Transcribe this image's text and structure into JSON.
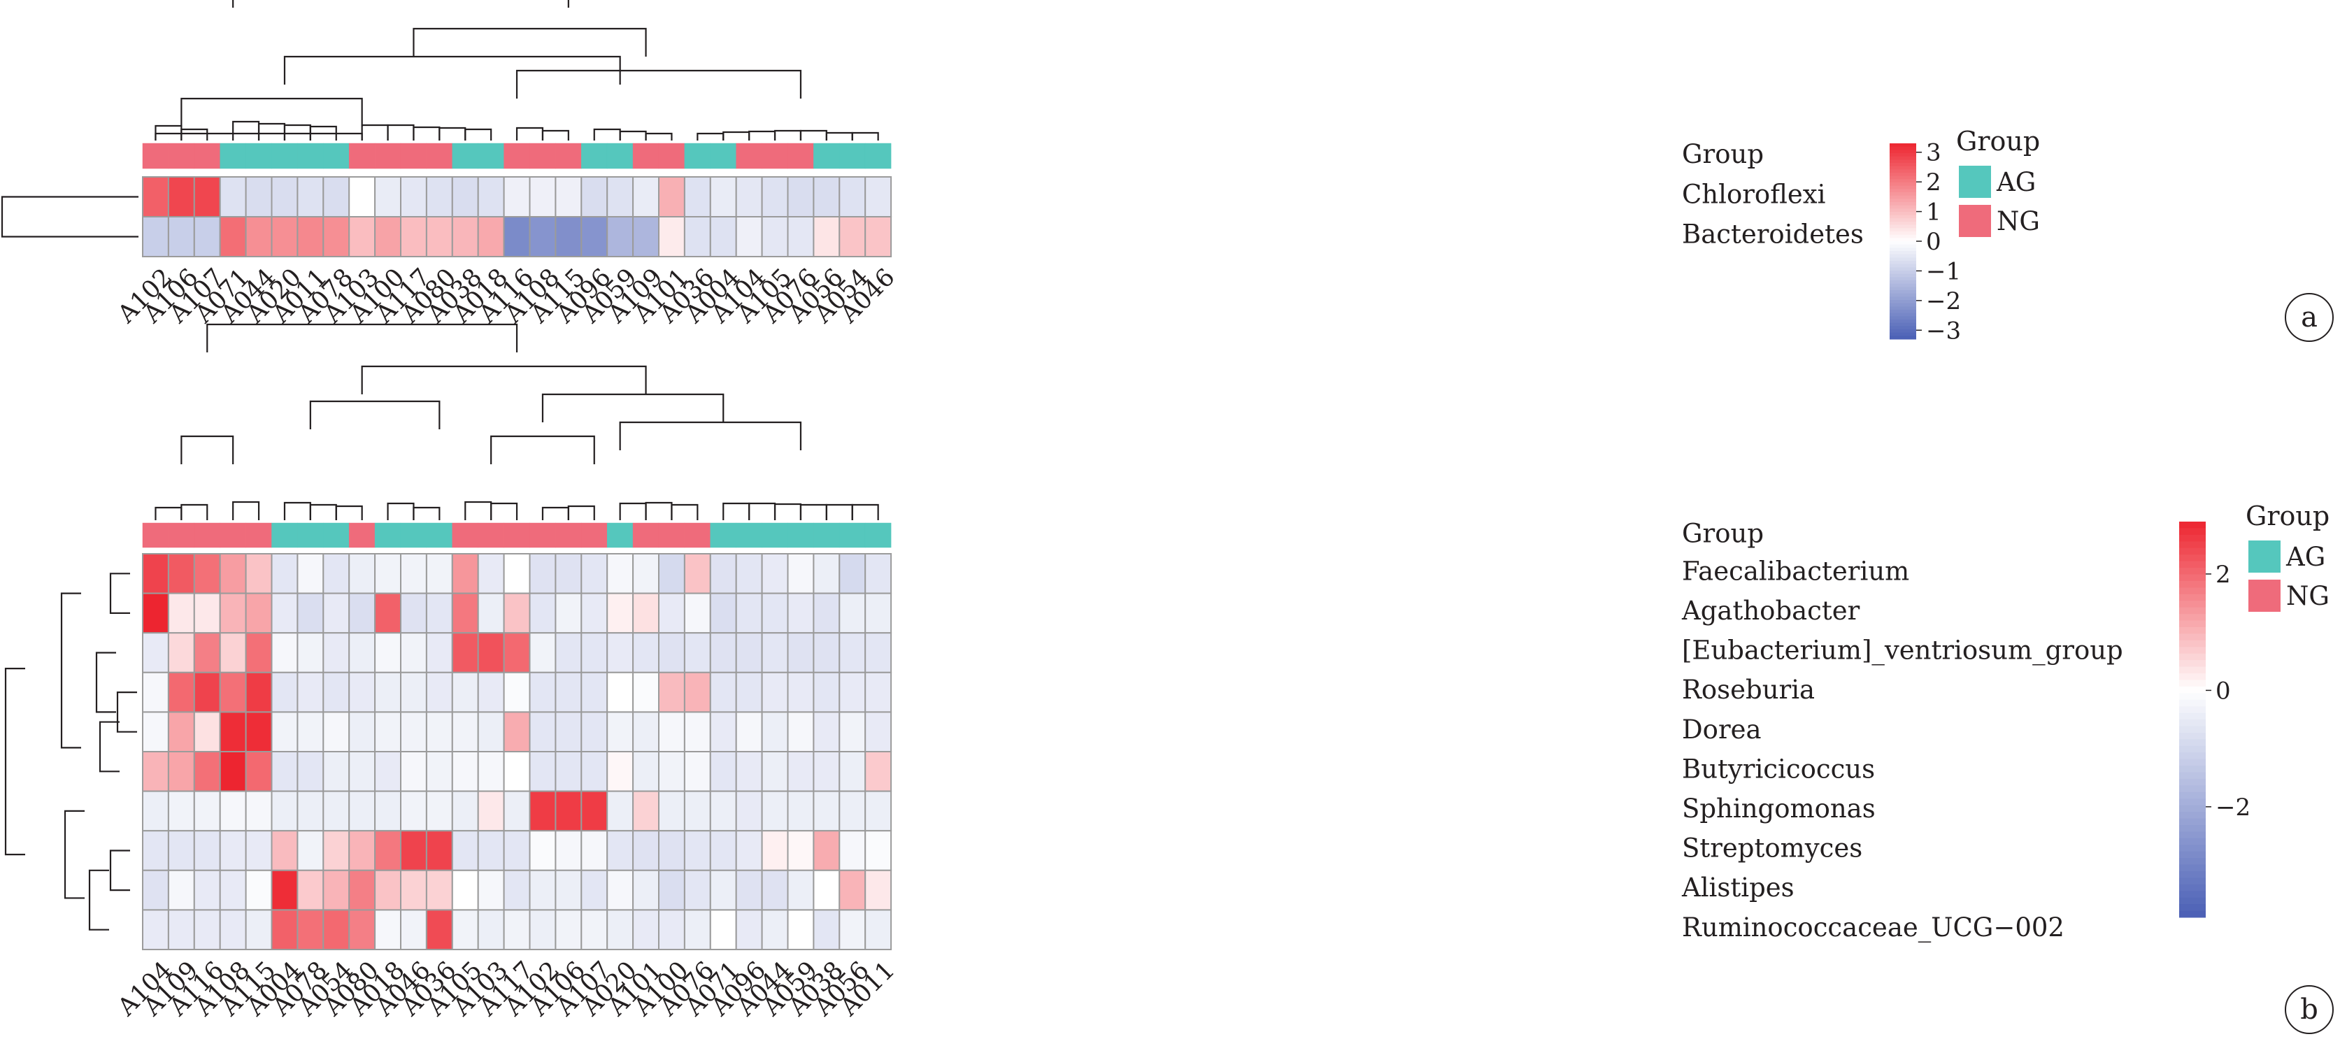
{
  "colors": {
    "AG": "#55c7bd",
    "NG": "#ef6b7b",
    "high": "#ed2530",
    "mid": "#ffffff",
    "low": "#4a5fb5",
    "cell_border": "#9b9b9b",
    "dendrogram": "#231f20"
  },
  "chart_data": [
    {
      "type": "heatmap",
      "panel_label": "a",
      "columns": [
        "A102",
        "A106",
        "A107",
        "A071",
        "A044",
        "A020",
        "A011",
        "A078",
        "A103",
        "A100",
        "A117",
        "A080",
        "A038",
        "A018",
        "A116",
        "A108",
        "A115",
        "A096",
        "A059",
        "A109",
        "A101",
        "A036",
        "A004",
        "A104",
        "A105",
        "A076",
        "A056",
        "A054",
        "A046"
      ],
      "groups": [
        "NG",
        "NG",
        "NG",
        "AG",
        "AG",
        "AG",
        "AG",
        "AG",
        "NG",
        "NG",
        "NG",
        "NG",
        "AG",
        "AG",
        "NG",
        "NG",
        "NG",
        "AG",
        "AG",
        "NG",
        "NG",
        "AG",
        "AG",
        "NG",
        "NG",
        "NG",
        "AG",
        "AG",
        "AG"
      ],
      "group_row_label": "Group",
      "rows": [
        "Chloroflexi",
        "Bacteroidetes"
      ],
      "values": [
        [
          2.4,
          2.8,
          2.8,
          -0.6,
          -0.7,
          -0.7,
          -0.6,
          -0.7,
          0.0,
          -0.4,
          -0.5,
          -0.6,
          -0.7,
          -0.6,
          -0.3,
          -0.3,
          -0.3,
          -0.7,
          -0.6,
          -0.4,
          1.2,
          -0.6,
          -0.4,
          -0.5,
          -0.6,
          -0.7,
          -0.7,
          -0.6,
          -0.5
        ],
        [
          -1.0,
          -1.0,
          -1.0,
          2.2,
          1.7,
          1.7,
          1.8,
          1.7,
          1.0,
          1.4,
          1.0,
          1.0,
          1.1,
          1.3,
          -2.4,
          -2.2,
          -2.3,
          -2.2,
          -1.5,
          -1.5,
          0.3,
          -0.6,
          -0.6,
          -0.3,
          -0.5,
          -0.5,
          0.4,
          0.9,
          0.9
        ]
      ],
      "legend": {
        "title": "Group",
        "entries": [
          {
            "label": "AG",
            "group": "AG"
          },
          {
            "label": "NG",
            "group": "NG"
          }
        ],
        "colorbar_ticks": [
          "3",
          "2",
          "1",
          "0",
          "−1",
          "−2",
          "−3"
        ],
        "colorbar_range": [
          -3.3,
          3.3
        ]
      }
    },
    {
      "type": "heatmap",
      "panel_label": "b",
      "columns": [
        "A104",
        "A109",
        "A116",
        "A108",
        "A115",
        "A004",
        "A078",
        "A054",
        "A080",
        "A018",
        "A046",
        "A036",
        "A105",
        "A103",
        "A117",
        "A102",
        "A106",
        "A107",
        "A020",
        "A101",
        "A100",
        "A076",
        "A071",
        "A096",
        "A044",
        "A059",
        "A038",
        "A056",
        "A011"
      ],
      "groups": [
        "NG",
        "NG",
        "NG",
        "NG",
        "NG",
        "AG",
        "AG",
        "AG",
        "NG",
        "AG",
        "AG",
        "AG",
        "NG",
        "NG",
        "NG",
        "NG",
        "NG",
        "NG",
        "AG",
        "NG",
        "NG",
        "NG",
        "AG",
        "AG",
        "AG",
        "AG",
        "AG",
        "AG",
        "AG"
      ],
      "group_row_label": "Group",
      "rows": [
        "Faecalibacterium",
        "Agathobacter",
        "[Eubacterium]_ventriosum_group",
        "Roseburia",
        "Dorea",
        "Butyricicoccus",
        "Sphingomonas",
        "Streptomyces",
        "Alistipes",
        "Ruminococcaceae_UCG−002"
      ],
      "values": [
        [
          2.5,
          2.2,
          1.9,
          1.3,
          0.8,
          -0.6,
          -0.2,
          -0.6,
          -0.4,
          -0.3,
          -0.3,
          -0.3,
          1.4,
          -0.5,
          0.0,
          -0.7,
          -0.7,
          -0.6,
          -0.2,
          -0.3,
          -0.9,
          0.8,
          -0.7,
          -0.6,
          -0.5,
          -0.2,
          -0.4,
          -0.9,
          -0.6
        ],
        [
          2.9,
          0.3,
          0.3,
          1.0,
          1.2,
          -0.5,
          -0.8,
          -0.5,
          -0.8,
          2.1,
          -0.7,
          -0.6,
          1.8,
          -0.4,
          0.8,
          -0.6,
          -0.3,
          -0.5,
          0.2,
          0.4,
          -0.5,
          -0.2,
          -0.8,
          -0.6,
          -0.6,
          -0.5,
          -0.7,
          -0.4,
          -0.4
        ],
        [
          -0.5,
          0.5,
          1.7,
          0.6,
          1.9,
          -0.2,
          -0.3,
          -0.5,
          -0.4,
          -0.2,
          -0.3,
          -0.5,
          2.2,
          2.3,
          2.0,
          -0.3,
          -0.6,
          -0.6,
          -0.5,
          -0.6,
          -0.7,
          -0.6,
          -0.7,
          -0.7,
          -0.6,
          -0.7,
          -0.7,
          -0.6,
          -0.6
        ],
        [
          -0.2,
          2.0,
          2.5,
          1.9,
          2.6,
          -0.6,
          -0.5,
          -0.6,
          -0.5,
          -0.4,
          -0.4,
          -0.5,
          -0.4,
          -0.5,
          -0.1,
          -0.6,
          -0.6,
          -0.6,
          0.0,
          -0.1,
          0.9,
          1.0,
          -0.6,
          -0.6,
          -0.5,
          -0.5,
          -0.6,
          -0.5,
          -0.5
        ],
        [
          -0.2,
          1.2,
          0.4,
          2.8,
          2.8,
          -0.3,
          -0.3,
          -0.2,
          -0.4,
          -0.3,
          -0.3,
          -0.3,
          -0.3,
          -0.4,
          1.1,
          -0.6,
          -0.6,
          -0.6,
          -0.3,
          -0.4,
          -0.2,
          -0.2,
          -0.5,
          -0.2,
          -0.4,
          -0.2,
          -0.5,
          -0.3,
          -0.5
        ],
        [
          1.0,
          1.2,
          1.9,
          2.9,
          2.0,
          -0.6,
          -0.6,
          -0.4,
          -0.4,
          -0.5,
          -0.2,
          -0.3,
          -0.2,
          -0.2,
          0.0,
          -0.6,
          -0.6,
          -0.6,
          0.1,
          -0.4,
          -0.3,
          -0.2,
          -0.6,
          -0.5,
          -0.4,
          -0.5,
          -0.5,
          -0.4,
          0.7
        ],
        [
          -0.4,
          -0.3,
          -0.3,
          -0.2,
          -0.2,
          -0.4,
          -0.4,
          -0.4,
          -0.4,
          -0.4,
          -0.3,
          -0.3,
          -0.4,
          0.3,
          -0.4,
          2.6,
          2.6,
          2.6,
          -0.4,
          0.6,
          -0.4,
          -0.4,
          -0.4,
          -0.5,
          -0.4,
          -0.4,
          -0.4,
          -0.4,
          -0.4
        ],
        [
          -0.6,
          -0.6,
          -0.6,
          -0.5,
          -0.5,
          0.9,
          -0.3,
          0.6,
          1.0,
          1.8,
          2.5,
          2.5,
          -0.6,
          -0.6,
          -0.6,
          -0.1,
          -0.2,
          -0.2,
          -0.6,
          -0.7,
          -0.7,
          -0.6,
          -0.6,
          -0.5,
          0.2,
          0.1,
          1.1,
          -0.2,
          -0.1
        ],
        [
          -0.7,
          -0.2,
          -0.5,
          -0.5,
          -0.1,
          2.8,
          0.7,
          1.0,
          1.7,
          0.8,
          0.6,
          0.6,
          0.0,
          -0.2,
          -0.6,
          -0.4,
          -0.4,
          -0.6,
          -0.2,
          -0.4,
          -0.8,
          -0.6,
          -0.4,
          -0.7,
          -0.7,
          -0.4,
          0.0,
          1.0,
          0.3
        ],
        [
          -0.5,
          -0.5,
          -0.5,
          -0.5,
          -0.4,
          2.1,
          1.9,
          2.0,
          1.7,
          -0.2,
          -0.3,
          2.4,
          -0.3,
          -0.4,
          -0.3,
          -0.4,
          -0.3,
          -0.3,
          -0.4,
          -0.5,
          -0.5,
          -0.4,
          0.0,
          -0.5,
          -0.4,
          0.0,
          -0.6,
          -0.3,
          -0.4
        ]
      ],
      "legend": {
        "title": "Group",
        "entries": [
          {
            "label": "AG",
            "group": "AG"
          },
          {
            "label": "NG",
            "group": "NG"
          }
        ],
        "colorbar_ticks": [
          "2",
          "0",
          "−2"
        ],
        "colorbar_range": [
          -3.9,
          2.9
        ]
      }
    }
  ]
}
